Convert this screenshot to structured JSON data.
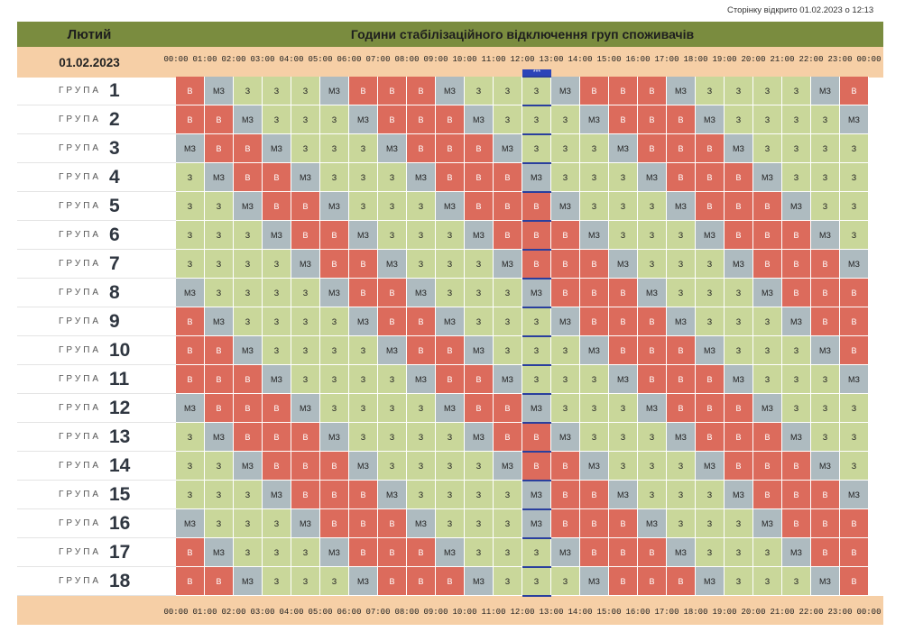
{
  "page": {
    "opened_text": "Сторінку відкрито 01.02.2023 о 12:13",
    "month": "Лютий",
    "title": "Години стабілізаційного відключення груп споживачів",
    "date": "01.02.2023",
    "group_word": "ГРУПА",
    "now_marker": "***"
  },
  "hours": [
    "00:00",
    "01:00",
    "02:00",
    "03:00",
    "04:00",
    "05:00",
    "06:00",
    "07:00",
    "08:00",
    "09:00",
    "10:00",
    "11:00",
    "12:00",
    "13:00",
    "14:00",
    "15:00",
    "16:00",
    "17:00",
    "18:00",
    "19:00",
    "20:00",
    "21:00",
    "22:00",
    "23:00",
    "00:00"
  ],
  "legend": {
    "B": "В",
    "MZ": "МЗ",
    "Z": "З"
  },
  "colors": {
    "B": "#dc6b5c",
    "MZ": "#aebbc0",
    "Z": "#c9d79a",
    "header": "#7a8c3f",
    "hours_bar": "#f6cfa6",
    "now": "#2b44b8"
  },
  "current_hour_index": 12,
  "groups": [
    {
      "num": "1",
      "slots": [
        "В",
        "МЗ",
        "З",
        "З",
        "З",
        "МЗ",
        "В",
        "В",
        "В",
        "МЗ",
        "З",
        "З",
        "З",
        "МЗ",
        "В",
        "В",
        "В",
        "МЗ",
        "З",
        "З",
        "З",
        "З",
        "МЗ",
        "В"
      ]
    },
    {
      "num": "2",
      "slots": [
        "В",
        "В",
        "МЗ",
        "З",
        "З",
        "З",
        "МЗ",
        "В",
        "В",
        "В",
        "МЗ",
        "З",
        "З",
        "З",
        "МЗ",
        "В",
        "В",
        "В",
        "МЗ",
        "З",
        "З",
        "З",
        "З",
        "МЗ"
      ]
    },
    {
      "num": "3",
      "slots": [
        "МЗ",
        "В",
        "В",
        "МЗ",
        "З",
        "З",
        "З",
        "МЗ",
        "В",
        "В",
        "В",
        "МЗ",
        "З",
        "З",
        "З",
        "МЗ",
        "В",
        "В",
        "В",
        "МЗ",
        "З",
        "З",
        "З",
        "З"
      ]
    },
    {
      "num": "4",
      "slots": [
        "З",
        "МЗ",
        "В",
        "В",
        "МЗ",
        "З",
        "З",
        "З",
        "МЗ",
        "В",
        "В",
        "В",
        "МЗ",
        "З",
        "З",
        "З",
        "МЗ",
        "В",
        "В",
        "В",
        "МЗ",
        "З",
        "З",
        "З"
      ]
    },
    {
      "num": "5",
      "slots": [
        "З",
        "З",
        "МЗ",
        "В",
        "В",
        "МЗ",
        "З",
        "З",
        "З",
        "МЗ",
        "В",
        "В",
        "В",
        "МЗ",
        "З",
        "З",
        "З",
        "МЗ",
        "В",
        "В",
        "В",
        "МЗ",
        "З",
        "З"
      ]
    },
    {
      "num": "6",
      "slots": [
        "З",
        "З",
        "З",
        "МЗ",
        "В",
        "В",
        "МЗ",
        "З",
        "З",
        "З",
        "МЗ",
        "В",
        "В",
        "В",
        "МЗ",
        "З",
        "З",
        "З",
        "МЗ",
        "В",
        "В",
        "В",
        "МЗ",
        "З"
      ]
    },
    {
      "num": "7",
      "slots": [
        "З",
        "З",
        "З",
        "З",
        "МЗ",
        "В",
        "В",
        "МЗ",
        "З",
        "З",
        "З",
        "МЗ",
        "В",
        "В",
        "В",
        "МЗ",
        "З",
        "З",
        "З",
        "МЗ",
        "В",
        "В",
        "В",
        "МЗ"
      ]
    },
    {
      "num": "8",
      "slots": [
        "МЗ",
        "З",
        "З",
        "З",
        "З",
        "МЗ",
        "В",
        "В",
        "МЗ",
        "З",
        "З",
        "З",
        "МЗ",
        "В",
        "В",
        "В",
        "МЗ",
        "З",
        "З",
        "З",
        "МЗ",
        "В",
        "В",
        "В"
      ]
    },
    {
      "num": "9",
      "slots": [
        "В",
        "МЗ",
        "З",
        "З",
        "З",
        "З",
        "МЗ",
        "В",
        "В",
        "МЗ",
        "З",
        "З",
        "З",
        "МЗ",
        "В",
        "В",
        "В",
        "МЗ",
        "З",
        "З",
        "З",
        "МЗ",
        "В",
        "В"
      ]
    },
    {
      "num": "10",
      "slots": [
        "В",
        "В",
        "МЗ",
        "З",
        "З",
        "З",
        "З",
        "МЗ",
        "В",
        "В",
        "МЗ",
        "З",
        "З",
        "З",
        "МЗ",
        "В",
        "В",
        "В",
        "МЗ",
        "З",
        "З",
        "З",
        "МЗ",
        "В"
      ]
    },
    {
      "num": "11",
      "slots": [
        "В",
        "В",
        "В",
        "МЗ",
        "З",
        "З",
        "З",
        "З",
        "МЗ",
        "В",
        "В",
        "МЗ",
        "З",
        "З",
        "З",
        "МЗ",
        "В",
        "В",
        "В",
        "МЗ",
        "З",
        "З",
        "З",
        "МЗ"
      ]
    },
    {
      "num": "12",
      "slots": [
        "МЗ",
        "В",
        "В",
        "В",
        "МЗ",
        "З",
        "З",
        "З",
        "З",
        "МЗ",
        "В",
        "В",
        "МЗ",
        "З",
        "З",
        "З",
        "МЗ",
        "В",
        "В",
        "В",
        "МЗ",
        "З",
        "З",
        "З"
      ]
    },
    {
      "num": "13",
      "slots": [
        "З",
        "МЗ",
        "В",
        "В",
        "В",
        "МЗ",
        "З",
        "З",
        "З",
        "З",
        "МЗ",
        "В",
        "В",
        "МЗ",
        "З",
        "З",
        "З",
        "МЗ",
        "В",
        "В",
        "В",
        "МЗ",
        "З",
        "З"
      ]
    },
    {
      "num": "14",
      "slots": [
        "З",
        "З",
        "МЗ",
        "В",
        "В",
        "В",
        "МЗ",
        "З",
        "З",
        "З",
        "З",
        "МЗ",
        "В",
        "В",
        "МЗ",
        "З",
        "З",
        "З",
        "МЗ",
        "В",
        "В",
        "В",
        "МЗ",
        "З"
      ]
    },
    {
      "num": "15",
      "slots": [
        "З",
        "З",
        "З",
        "МЗ",
        "В",
        "В",
        "В",
        "МЗ",
        "З",
        "З",
        "З",
        "З",
        "МЗ",
        "В",
        "В",
        "МЗ",
        "З",
        "З",
        "З",
        "МЗ",
        "В",
        "В",
        "В",
        "МЗ"
      ]
    },
    {
      "num": "16",
      "slots": [
        "МЗ",
        "З",
        "З",
        "З",
        "МЗ",
        "В",
        "В",
        "В",
        "МЗ",
        "З",
        "З",
        "З",
        "МЗ",
        "В",
        "В",
        "В",
        "МЗ",
        "З",
        "З",
        "З",
        "МЗ",
        "В",
        "В",
        "В"
      ]
    },
    {
      "num": "17",
      "slots": [
        "В",
        "МЗ",
        "З",
        "З",
        "З",
        "МЗ",
        "В",
        "В",
        "В",
        "МЗ",
        "З",
        "З",
        "З",
        "МЗ",
        "В",
        "В",
        "В",
        "МЗ",
        "З",
        "З",
        "З",
        "МЗ",
        "В",
        "В"
      ]
    },
    {
      "num": "18",
      "slots": [
        "В",
        "В",
        "МЗ",
        "З",
        "З",
        "З",
        "МЗ",
        "В",
        "В",
        "В",
        "МЗ",
        "З",
        "З",
        "З",
        "МЗ",
        "В",
        "В",
        "В",
        "МЗ",
        "З",
        "З",
        "З",
        "МЗ",
        "В"
      ]
    }
  ]
}
